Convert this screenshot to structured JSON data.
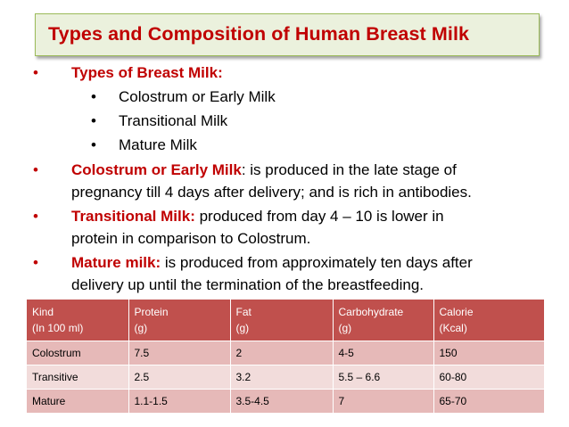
{
  "title": "Types and Composition of Human Breast Milk",
  "bullets": {
    "bullet_char": "•",
    "types_heading": "Types of Breast Milk:",
    "types": [
      "Colostrum or Early Milk",
      "Transitional Milk",
      "Mature Milk"
    ],
    "colostrum_label": "Colostrum or Early Milk",
    "colostrum_text_1": ":  is produced in the late stage of",
    "colostrum_text_2": "pregnancy till 4 days after delivery; and is rich in antibodies.",
    "transitional_label": "Transitional Milk:",
    "transitional_text_1": "  produced from day 4 – 10 is lower in",
    "transitional_text_2": "protein in comparison to Colostrum.",
    "mature_label": "Mature milk:",
    "mature_text_1": " is produced from approximately ten days after",
    "mature_text_2": "delivery up until the termination of the breastfeeding."
  },
  "table": {
    "headers": [
      [
        "Kind",
        "(In 100 ml)"
      ],
      [
        "Protein",
        "(g)"
      ],
      [
        "Fat",
        "(g)"
      ],
      [
        "Carbohydrate",
        "(g)"
      ],
      [
        "Calorie",
        "(Kcal)"
      ]
    ],
    "rows": [
      [
        "Colostrum",
        "7.5",
        "2",
        "4-5",
        "150"
      ],
      [
        "Transitive",
        "2.5",
        "3.2",
        "5.5 – 6.6",
        "60-80"
      ],
      [
        "Mature",
        "1.1-1.5",
        "3.5-4.5",
        "7",
        "65-70"
      ]
    ]
  },
  "colors": {
    "title_red": "#c00000",
    "title_bg": "#ebf1dd",
    "header_bg": "#c0504d",
    "row_dark": "#e6b9b8",
    "row_light": "#f2dcdb"
  }
}
